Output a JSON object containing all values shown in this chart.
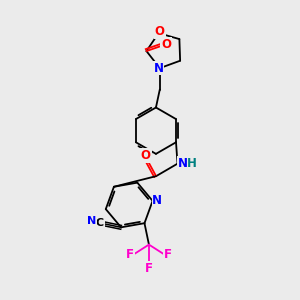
{
  "background_color": "#ebebeb",
  "atom_colors": {
    "N": "#0000ff",
    "O": "#ff0000",
    "F": "#ff00cc",
    "H": "#008080"
  },
  "figsize": [
    3.0,
    3.0
  ],
  "dpi": 100
}
